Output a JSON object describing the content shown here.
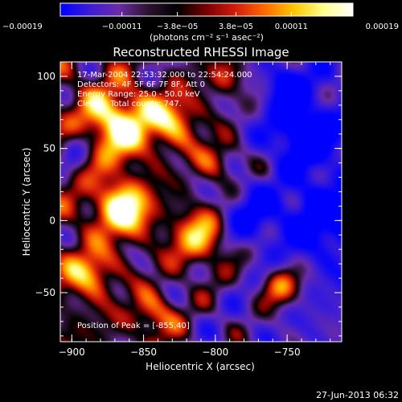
{
  "chart_data": {
    "type": "heatmap",
    "title": "Reconstructed RHESSI Image",
    "xlabel": "Heliocentric X (arcsec)",
    "ylabel": "Heliocentric Y (arcsec)",
    "xlim": [
      -908,
      -712
    ],
    "ylim": [
      -84,
      110
    ],
    "xticks": [
      -900,
      -850,
      -800,
      -750
    ],
    "yticks": [
      -50,
      0,
      50,
      100
    ],
    "xtick_labels": [
      "−900",
      "−850",
      "−800",
      "−750"
    ],
    "ytick_labels": [
      "−50",
      "0",
      "50",
      "100"
    ],
    "colorbar": {
      "range": [
        -0.00019,
        0.00019
      ],
      "tick_values": [
        -0.00019,
        -0.00011,
        -3.8e-05,
        3.8e-05,
        0.00011,
        0.00019
      ],
      "tick_labels": [
        "−0.00019",
        "−0.00011",
        "−3.8e−05",
        "3.8e−05",
        "0.00011",
        "0.00019"
      ],
      "unit_label": "(photons cm⁻² s⁻¹ asec⁻²)",
      "colors": [
        "#0000ff",
        "#3c1cd6",
        "#6a2ca8",
        "#2c1230",
        "#000000",
        "#7a0000",
        "#d41c0c",
        "#ff6a00",
        "#ffc800",
        "#ffff8c",
        "#ffffff"
      ]
    },
    "annotations": {
      "time_range": "17-Mar-2004 22:53:32.000 to 22:54:24.000",
      "detectors": "Detectors: 4F 5F 6F 7F 8F, Att 0",
      "energy_range": "Energy Range: 25.0 - 50.0 keV",
      "algorithm": "Clean    Total counts: 747.",
      "peak": "Position of Peak = [-855,40]"
    },
    "footer_date": "27-Jun-2013 06:32"
  }
}
